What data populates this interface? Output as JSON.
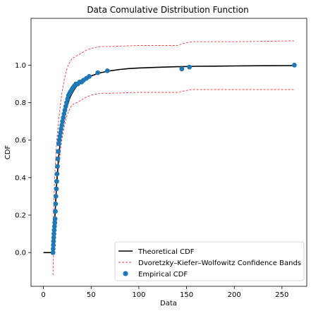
{
  "chart_data": {
    "type": "scatter",
    "title": "Data Comulative Distribution Function",
    "xlabel": "Data",
    "ylabel": "CDF",
    "xlim": [
      -13,
      276
    ],
    "ylim": [
      -0.18,
      1.25
    ],
    "xticks": [
      0,
      50,
      100,
      150,
      200,
      250
    ],
    "yticks": [
      0.0,
      0.2,
      0.4,
      0.6,
      0.8,
      1.0
    ],
    "ytick_labels": [
      "0.0",
      "0.2",
      "0.4",
      "0.6",
      "0.8",
      "1.0"
    ],
    "grid": false,
    "legend_position": "lower-right",
    "series": [
      {
        "name": "Theoretical CDF",
        "kind": "line",
        "color": "#000000",
        "x": [
          0,
          8,
          9,
          10,
          11,
          12,
          13,
          14,
          15,
          16,
          17,
          18,
          19,
          20,
          22,
          24,
          26,
          28,
          30,
          33,
          36,
          40,
          45,
          50,
          55,
          60,
          70,
          80,
          90,
          100,
          120,
          140,
          160,
          180,
          200,
          230,
          264
        ],
        "y": [
          0.0,
          0.0,
          0.0,
          0.0,
          0.08,
          0.19,
          0.29,
          0.38,
          0.45,
          0.51,
          0.56,
          0.61,
          0.65,
          0.68,
          0.73,
          0.77,
          0.8,
          0.83,
          0.85,
          0.875,
          0.895,
          0.915,
          0.93,
          0.943,
          0.952,
          0.96,
          0.97,
          0.977,
          0.982,
          0.985,
          0.989,
          0.992,
          0.994,
          0.995,
          0.996,
          0.997,
          0.998
        ]
      },
      {
        "name": "Dvoretzky–Kiefer–Wolfowitz Confidence Bands",
        "kind": "dashed-band",
        "color": "#e8403c",
        "x": [
          10,
          11,
          12,
          13,
          14,
          15,
          16,
          17,
          18,
          19,
          20,
          22,
          24,
          26,
          28,
          30,
          35,
          40,
          45,
          50,
          55,
          60,
          65,
          70,
          100,
          140,
          150,
          155,
          200,
          264
        ],
        "upper": [
          0.13,
          0.3,
          0.42,
          0.52,
          0.6,
          0.66,
          0.71,
          0.75,
          0.8,
          0.84,
          0.87,
          0.93,
          0.97,
          1.0,
          1.02,
          1.035,
          1.05,
          1.065,
          1.08,
          1.09,
          1.095,
          1.1,
          1.1,
          1.1,
          1.105,
          1.105,
          1.12,
          1.125,
          1.125,
          1.13
        ],
        "lower": [
          -0.12,
          0.06,
          0.17,
          0.27,
          0.35,
          0.41,
          0.46,
          0.5,
          0.55,
          0.59,
          0.62,
          0.68,
          0.72,
          0.75,
          0.77,
          0.79,
          0.8,
          0.815,
          0.83,
          0.84,
          0.845,
          0.85,
          0.85,
          0.85,
          0.855,
          0.855,
          0.865,
          0.87,
          0.87,
          0.87
        ]
      },
      {
        "name": "Empirical CDF",
        "kind": "points",
        "color": "#1f77b4",
        "x": [
          10.0,
          10.2,
          10.4,
          10.6,
          10.8,
          11.0,
          11.3,
          11.6,
          11.9,
          12.2,
          12.5,
          12.8,
          13.1,
          13.5,
          13.9,
          14.3,
          14.7,
          15.1,
          15.6,
          16.1,
          16.6,
          17.2,
          17.8,
          18.5,
          19.2,
          20.0,
          20.8,
          21.6,
          22.5,
          23.4,
          24.3,
          25.3,
          26.3,
          27.4,
          28.5,
          29.7,
          31.0,
          32.5,
          34.0,
          36.0,
          38.0,
          40.0,
          42.0,
          45.0,
          48.0,
          57.0,
          67.0,
          145.0,
          153.0,
          263.0
        ],
        "y": [
          0.0,
          0.02,
          0.04,
          0.06,
          0.08,
          0.1,
          0.12,
          0.14,
          0.16,
          0.18,
          0.22,
          0.26,
          0.3,
          0.34,
          0.38,
          0.42,
          0.46,
          0.5,
          0.54,
          0.58,
          0.6,
          0.62,
          0.64,
          0.66,
          0.68,
          0.7,
          0.72,
          0.74,
          0.76,
          0.78,
          0.8,
          0.82,
          0.84,
          0.85,
          0.86,
          0.87,
          0.88,
          0.89,
          0.9,
          0.9,
          0.91,
          0.91,
          0.92,
          0.93,
          0.94,
          0.96,
          0.97,
          0.98,
          0.99,
          1.0
        ]
      }
    ],
    "legend": [
      {
        "label": "Theoretical CDF",
        "kind": "line",
        "color": "#000000"
      },
      {
        "label": "Dvoretzky–Kiefer–Wolfowitz Confidence Bands",
        "kind": "dashed",
        "color": "#e8403c"
      },
      {
        "label": "Empirical CDF",
        "kind": "point",
        "color": "#1f77b4"
      }
    ]
  }
}
